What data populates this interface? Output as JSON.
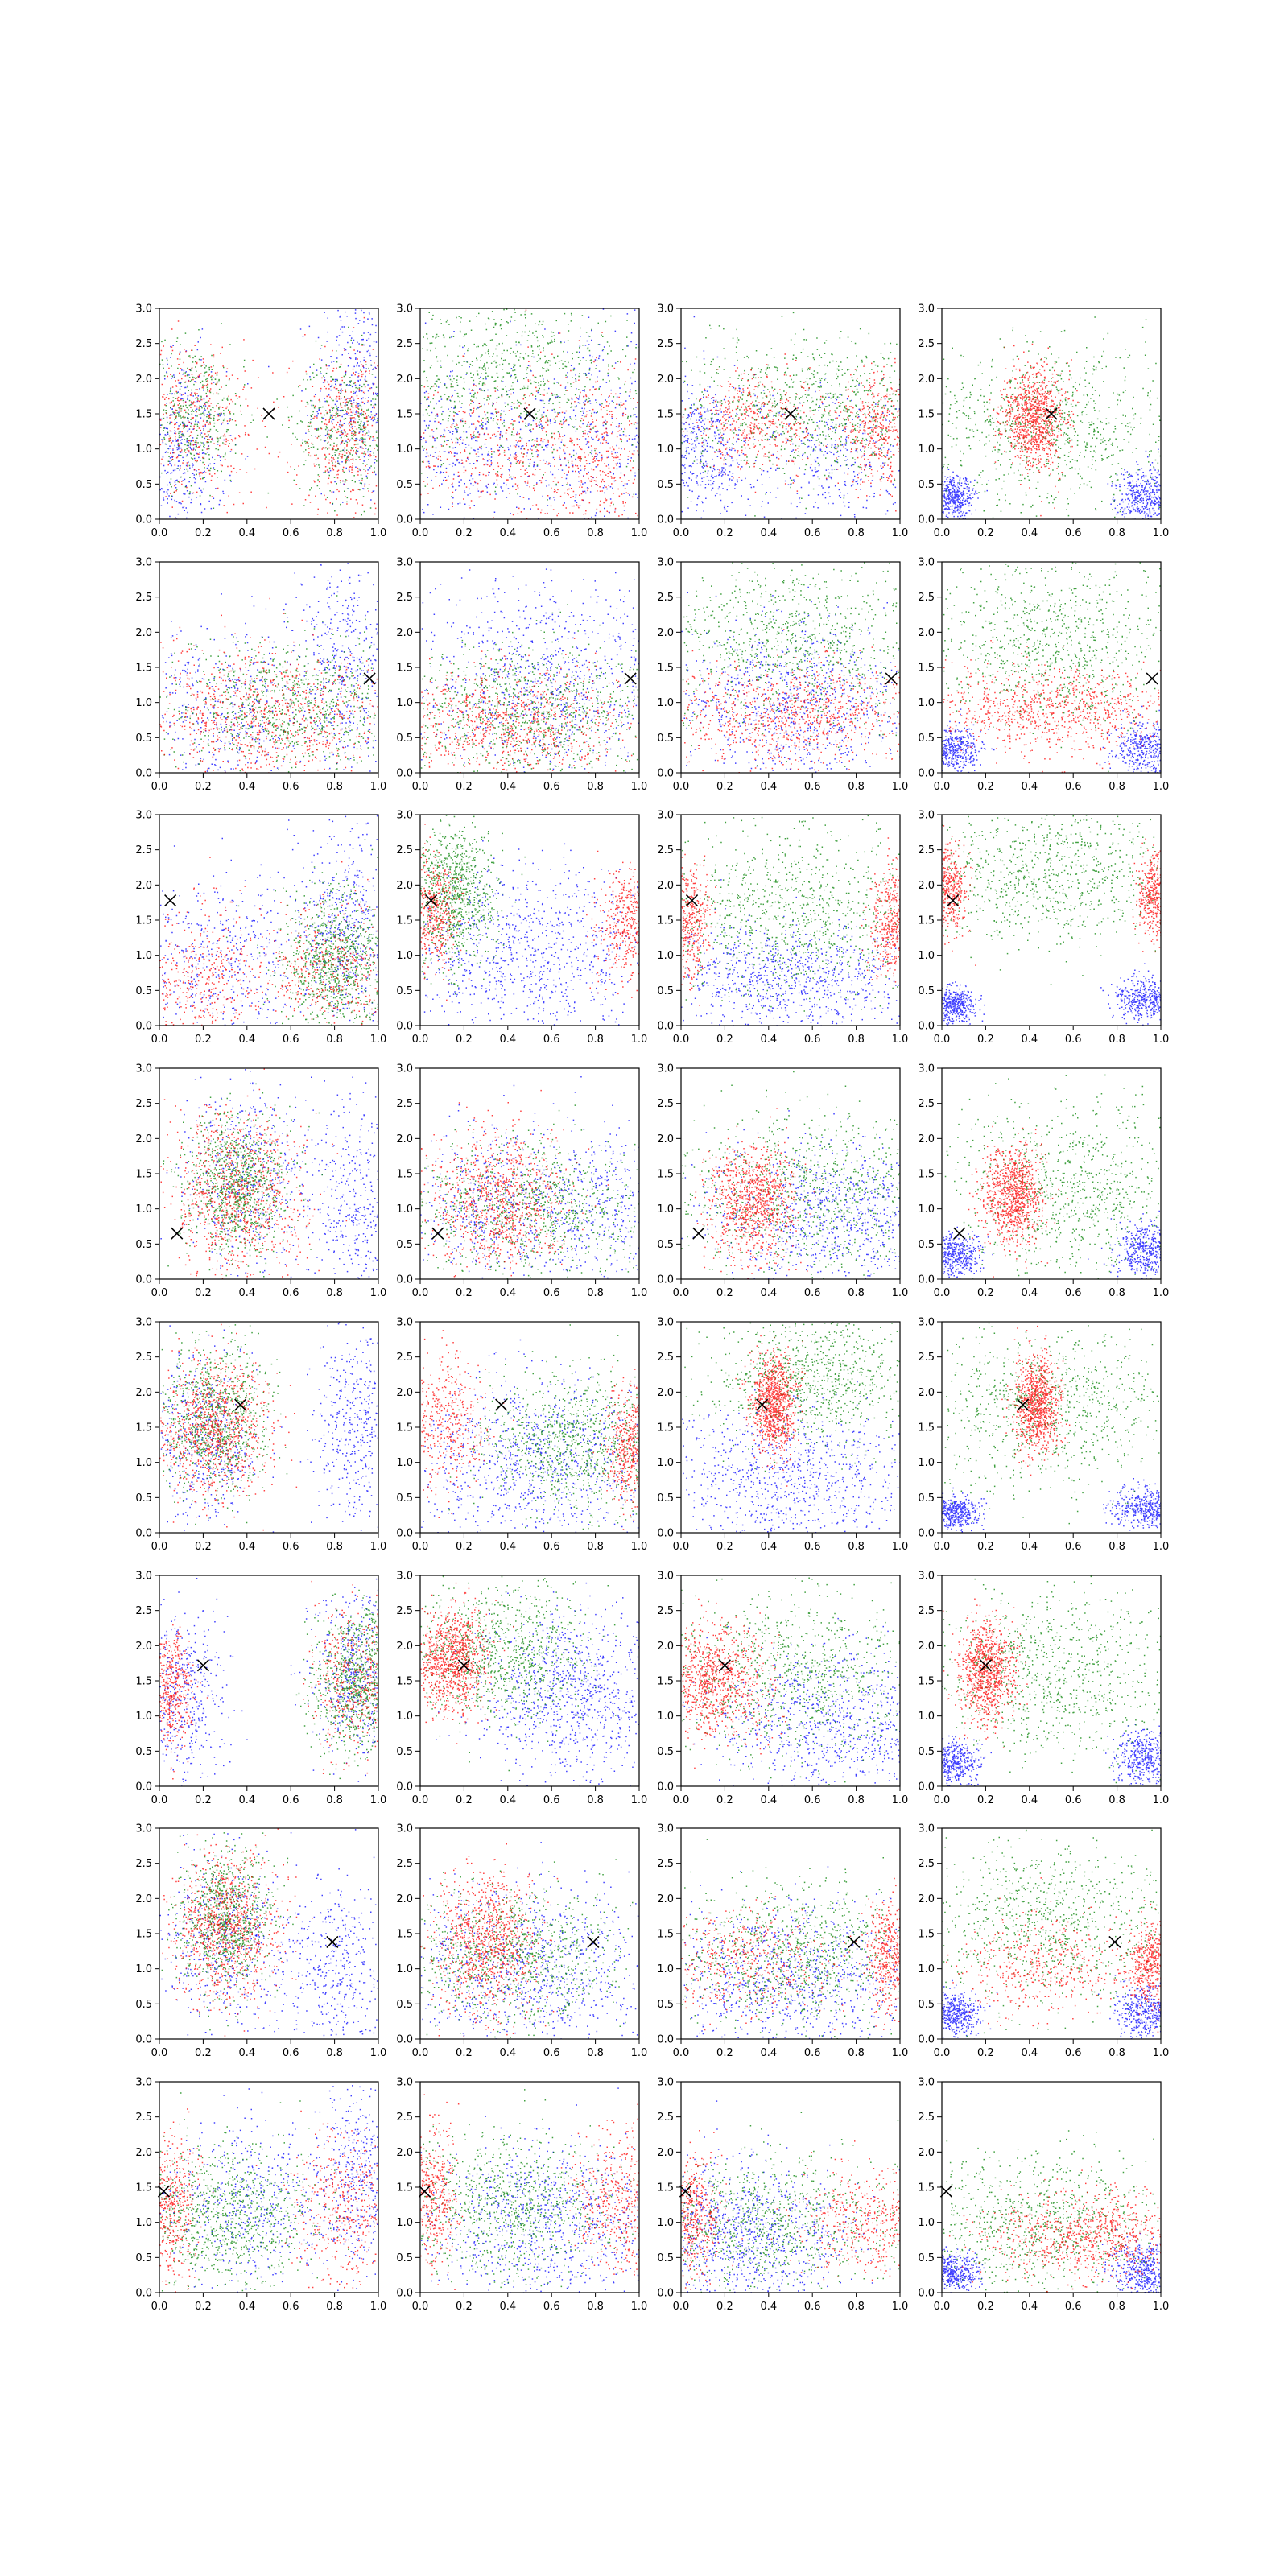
{
  "chart_data": {
    "type": "scatter",
    "layout": {
      "rows": 8,
      "cols": 4
    },
    "xlim": [
      0.0,
      1.0
    ],
    "ylim": [
      0.0,
      3.0
    ],
    "x_ticks": [
      "0.0",
      "0.2",
      "0.4",
      "0.6",
      "0.8",
      "1.0"
    ],
    "y_ticks": [
      "0.0",
      "0.5",
      "1.0",
      "1.5",
      "2.0",
      "2.5",
      "3.0"
    ],
    "grid": false,
    "legend": "none",
    "colors": {
      "red": "#ff0000",
      "green": "#008000",
      "blue": "#0000ff",
      "marker": "#000000"
    },
    "marker_symbol": "x",
    "row_markers": [
      {
        "x": 0.5,
        "y": 1.5
      },
      {
        "x": 0.96,
        "y": 1.34
      },
      {
        "x": 0.05,
        "y": 1.78
      },
      {
        "x": 0.08,
        "y": 0.65
      },
      {
        "x": 0.37,
        "y": 1.82
      },
      {
        "x": 0.2,
        "y": 1.72
      },
      {
        "x": 0.79,
        "y": 1.38
      },
      {
        "x": 0.02,
        "y": 1.44
      }
    ],
    "panels": [
      {
        "red": [
          [
            0.15,
            1.4,
            0.15,
            0.6
          ],
          [
            0.85,
            1.2,
            0.12,
            0.6
          ]
        ],
        "green": [
          [
            0.15,
            1.5,
            0.12,
            0.5
          ],
          [
            0.85,
            1.3,
            0.12,
            0.5
          ]
        ],
        "blue": [
          [
            0.9,
            1.8,
            0.1,
            0.8
          ],
          [
            0.1,
            1.0,
            0.1,
            0.7
          ]
        ]
      },
      {
        "red": [
          [
            0.3,
            1.0,
            0.25,
            0.6
          ],
          [
            0.8,
            0.9,
            0.15,
            0.6
          ]
        ],
        "green": [
          [
            0.4,
            2.0,
            0.3,
            0.6
          ]
        ],
        "blue": [
          [
            0.8,
            1.2,
            0.2,
            0.7
          ],
          [
            0.2,
            1.0,
            0.2,
            0.6
          ]
        ]
      },
      {
        "red": [
          [
            0.35,
            1.4,
            0.15,
            0.35
          ],
          [
            0.9,
            1.3,
            0.1,
            0.4
          ]
        ],
        "green": [
          [
            0.6,
            1.6,
            0.3,
            0.5
          ]
        ],
        "blue": [
          [
            0.7,
            0.8,
            0.25,
            0.6
          ],
          [
            0.1,
            1.0,
            0.1,
            0.5
          ]
        ]
      },
      {
        "red": [
          [
            0.42,
            1.45,
            0.07,
            0.35
          ]
        ],
        "green": [
          [
            0.5,
            1.3,
            0.3,
            0.6
          ]
        ],
        "blue": [
          [
            0.05,
            0.3,
            0.05,
            0.15
          ],
          [
            0.93,
            0.35,
            0.07,
            0.2
          ]
        ]
      },
      {
        "red": [
          [
            0.5,
            0.8,
            0.3,
            0.5
          ]
        ],
        "green": [
          [
            0.6,
            0.9,
            0.3,
            0.5
          ]
        ],
        "blue": [
          [
            0.85,
            1.5,
            0.12,
            0.8
          ],
          [
            0.3,
            0.9,
            0.2,
            0.6
          ]
        ]
      },
      {
        "red": [
          [
            0.4,
            0.7,
            0.3,
            0.4
          ]
        ],
        "green": [
          [
            0.5,
            0.9,
            0.3,
            0.5
          ]
        ],
        "blue": [
          [
            0.6,
            1.3,
            0.3,
            0.7
          ]
        ]
      },
      {
        "red": [
          [
            0.5,
            0.8,
            0.3,
            0.4
          ]
        ],
        "green": [
          [
            0.5,
            1.8,
            0.3,
            0.6
          ]
        ],
        "blue": [
          [
            0.5,
            1.0,
            0.3,
            0.6
          ]
        ]
      },
      {
        "red": [
          [
            0.5,
            0.9,
            0.3,
            0.3
          ]
        ],
        "green": [
          [
            0.5,
            1.9,
            0.3,
            0.6
          ]
        ],
        "blue": [
          [
            0.05,
            0.35,
            0.06,
            0.15
          ],
          [
            0.93,
            0.35,
            0.07,
            0.2
          ]
        ]
      },
      {
        "red": [
          [
            0.8,
            0.8,
            0.15,
            0.5
          ],
          [
            0.2,
            0.6,
            0.15,
            0.5
          ]
        ],
        "green": [
          [
            0.8,
            0.9,
            0.12,
            0.5
          ]
        ],
        "blue": [
          [
            0.85,
            1.5,
            0.1,
            0.7
          ],
          [
            0.3,
            0.9,
            0.2,
            0.6
          ]
        ]
      },
      {
        "red": [
          [
            0.95,
            1.5,
            0.07,
            0.4
          ],
          [
            0.05,
            1.6,
            0.06,
            0.4
          ]
        ],
        "green": [
          [
            0.15,
            1.9,
            0.1,
            0.5
          ]
        ],
        "blue": [
          [
            0.5,
            1.0,
            0.3,
            0.6
          ]
        ]
      },
      {
        "red": [
          [
            0.97,
            1.5,
            0.05,
            0.4
          ],
          [
            0.03,
            1.5,
            0.05,
            0.4
          ]
        ],
        "green": [
          [
            0.5,
            1.6,
            0.3,
            0.6
          ]
        ],
        "blue": [
          [
            0.5,
            0.7,
            0.3,
            0.4
          ]
        ]
      },
      {
        "red": [
          [
            0.97,
            1.85,
            0.04,
            0.3
          ],
          [
            0.03,
            1.95,
            0.04,
            0.3
          ]
        ],
        "green": [
          [
            0.5,
            2.2,
            0.3,
            0.5
          ]
        ],
        "blue": [
          [
            0.05,
            0.3,
            0.05,
            0.12
          ],
          [
            0.93,
            0.4,
            0.07,
            0.15
          ]
        ]
      },
      {
        "red": [
          [
            0.35,
            1.2,
            0.15,
            0.6
          ]
        ],
        "green": [
          [
            0.35,
            1.3,
            0.12,
            0.5
          ]
        ],
        "blue": [
          [
            0.4,
            1.4,
            0.15,
            0.7
          ],
          [
            0.9,
            1.0,
            0.1,
            0.7
          ]
        ]
      },
      {
        "red": [
          [
            0.35,
            1.1,
            0.15,
            0.5
          ]
        ],
        "green": [
          [
            0.5,
            1.0,
            0.3,
            0.5
          ]
        ],
        "blue": [
          [
            0.8,
            1.0,
            0.2,
            0.6
          ],
          [
            0.3,
            1.0,
            0.2,
            0.6
          ]
        ]
      },
      {
        "red": [
          [
            0.32,
            1.1,
            0.1,
            0.4
          ]
        ],
        "green": [
          [
            0.6,
            1.2,
            0.3,
            0.6
          ]
        ],
        "blue": [
          [
            0.7,
            0.9,
            0.3,
            0.5
          ]
        ]
      },
      {
        "red": [
          [
            0.32,
            1.2,
            0.07,
            0.35
          ]
        ],
        "green": [
          [
            0.6,
            1.3,
            0.3,
            0.6
          ]
        ],
        "blue": [
          [
            0.05,
            0.35,
            0.06,
            0.15
          ],
          [
            0.93,
            0.4,
            0.07,
            0.2
          ]
        ]
      },
      {
        "red": [
          [
            0.25,
            1.5,
            0.12,
            0.5
          ]
        ],
        "green": [
          [
            0.25,
            1.6,
            0.12,
            0.5
          ]
        ],
        "blue": [
          [
            0.2,
            1.3,
            0.12,
            0.6
          ],
          [
            0.9,
            1.5,
            0.1,
            0.7
          ]
        ]
      },
      {
        "red": [
          [
            0.1,
            1.6,
            0.1,
            0.5
          ],
          [
            0.95,
            1.2,
            0.05,
            0.4
          ]
        ],
        "green": [
          [
            0.7,
            1.3,
            0.2,
            0.5
          ]
        ],
        "blue": [
          [
            0.5,
            1.0,
            0.3,
            0.6
          ]
        ]
      },
      {
        "red": [
          [
            0.42,
            1.85,
            0.05,
            0.35
          ]
        ],
        "green": [
          [
            0.6,
            2.2,
            0.25,
            0.5
          ]
        ],
        "blue": [
          [
            0.5,
            0.8,
            0.3,
            0.5
          ]
        ]
      },
      {
        "red": [
          [
            0.43,
            1.85,
            0.05,
            0.35
          ]
        ],
        "green": [
          [
            0.5,
            1.8,
            0.3,
            0.6
          ]
        ],
        "blue": [
          [
            0.05,
            0.3,
            0.06,
            0.12
          ],
          [
            0.93,
            0.35,
            0.07,
            0.15
          ]
        ]
      },
      {
        "red": [
          [
            0.9,
            1.5,
            0.1,
            0.5
          ],
          [
            0.05,
            1.4,
            0.05,
            0.4
          ]
        ],
        "green": [
          [
            0.9,
            1.5,
            0.1,
            0.5
          ]
        ],
        "blue": [
          [
            0.9,
            1.6,
            0.1,
            0.6
          ],
          [
            0.1,
            1.3,
            0.1,
            0.6
          ]
        ]
      },
      {
        "red": [
          [
            0.15,
            1.8,
            0.08,
            0.35
          ]
        ],
        "green": [
          [
            0.35,
            1.9,
            0.2,
            0.5
          ]
        ],
        "blue": [
          [
            0.7,
            1.3,
            0.2,
            0.6
          ]
        ]
      },
      {
        "red": [
          [
            0.15,
            1.5,
            0.12,
            0.4
          ]
        ],
        "green": [
          [
            0.5,
            1.6,
            0.3,
            0.6
          ]
        ],
        "blue": [
          [
            0.7,
            0.9,
            0.3,
            0.5
          ]
        ]
      },
      {
        "red": [
          [
            0.2,
            1.65,
            0.06,
            0.35
          ]
        ],
        "green": [
          [
            0.5,
            1.6,
            0.3,
            0.6
          ]
        ],
        "blue": [
          [
            0.05,
            0.35,
            0.06,
            0.15
          ],
          [
            0.93,
            0.4,
            0.07,
            0.2
          ]
        ]
      },
      {
        "red": [
          [
            0.3,
            1.6,
            0.12,
            0.5
          ]
        ],
        "green": [
          [
            0.3,
            1.7,
            0.1,
            0.5
          ]
        ],
        "blue": [
          [
            0.3,
            1.4,
            0.15,
            0.6
          ],
          [
            0.8,
            1.0,
            0.15,
            0.6
          ]
        ]
      },
      {
        "red": [
          [
            0.3,
            1.4,
            0.12,
            0.5
          ]
        ],
        "green": [
          [
            0.4,
            1.2,
            0.25,
            0.5
          ]
        ],
        "blue": [
          [
            0.5,
            1.0,
            0.3,
            0.6
          ]
        ]
      },
      {
        "red": [
          [
            0.3,
            1.1,
            0.2,
            0.4
          ],
          [
            0.95,
            1.2,
            0.05,
            0.4
          ]
        ],
        "green": [
          [
            0.5,
            1.2,
            0.3,
            0.5
          ]
        ],
        "blue": [
          [
            0.5,
            0.9,
            0.3,
            0.5
          ]
        ]
      },
      {
        "red": [
          [
            0.45,
            1.0,
            0.2,
            0.35
          ],
          [
            0.95,
            1.1,
            0.05,
            0.3
          ]
        ],
        "green": [
          [
            0.5,
            1.7,
            0.3,
            0.6
          ]
        ],
        "blue": [
          [
            0.05,
            0.35,
            0.06,
            0.15
          ],
          [
            0.93,
            0.4,
            0.07,
            0.2
          ]
        ]
      },
      {
        "red": [
          [
            0.85,
            1.2,
            0.12,
            0.5
          ],
          [
            0.05,
            1.2,
            0.06,
            0.5
          ]
        ],
        "green": [
          [
            0.3,
            1.1,
            0.2,
            0.5
          ]
        ],
        "blue": [
          [
            0.9,
            1.6,
            0.1,
            0.7
          ],
          [
            0.4,
            1.3,
            0.2,
            0.6
          ]
        ]
      },
      {
        "red": [
          [
            0.9,
            1.3,
            0.1,
            0.5
          ],
          [
            0.05,
            1.4,
            0.06,
            0.5
          ]
        ],
        "green": [
          [
            0.4,
            1.2,
            0.25,
            0.5
          ]
        ],
        "blue": [
          [
            0.6,
            1.0,
            0.3,
            0.6
          ]
        ]
      },
      {
        "red": [
          [
            0.85,
            1.0,
            0.15,
            0.4
          ],
          [
            0.05,
            1.1,
            0.06,
            0.4
          ]
        ],
        "green": [
          [
            0.4,
            1.0,
            0.3,
            0.5
          ]
        ],
        "blue": [
          [
            0.3,
            0.8,
            0.25,
            0.5
          ]
        ]
      },
      {
        "red": [
          [
            0.7,
            0.8,
            0.25,
            0.3
          ]
        ],
        "green": [
          [
            0.4,
            1.0,
            0.3,
            0.5
          ]
        ],
        "blue": [
          [
            0.05,
            0.3,
            0.06,
            0.15
          ],
          [
            0.93,
            0.35,
            0.07,
            0.2
          ]
        ]
      }
    ]
  }
}
